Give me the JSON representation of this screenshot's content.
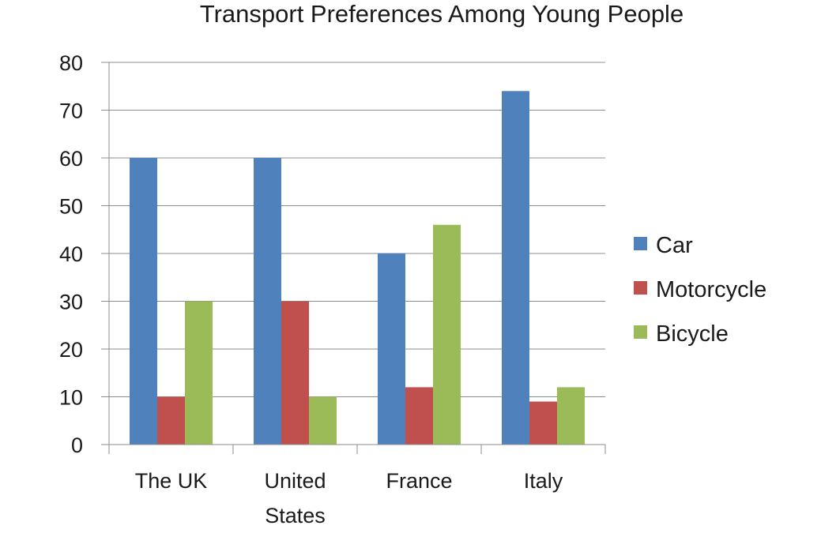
{
  "chart_data": {
    "type": "bar",
    "title": "Transport Preferences Among Young People",
    "categories": [
      "The UK",
      "United States",
      "France",
      "Italy"
    ],
    "category_lines": [
      [
        "The UK"
      ],
      [
        "United",
        "States"
      ],
      [
        "France"
      ],
      [
        "Italy"
      ]
    ],
    "series": [
      {
        "name": "Car",
        "color": "#4f81bd",
        "values": [
          60,
          60,
          40,
          74
        ]
      },
      {
        "name": "Motorcycle",
        "color": "#c0504d",
        "values": [
          10,
          30,
          12,
          9
        ]
      },
      {
        "name": "Bicycle",
        "color": "#9bbb59",
        "values": [
          30,
          10,
          46,
          12
        ]
      }
    ],
    "ylim": [
      0,
      80
    ],
    "yticks": [
      0,
      10,
      20,
      30,
      40,
      50,
      60,
      70,
      80
    ],
    "xlabel": "",
    "ylabel": "",
    "grid": true,
    "legend_position": "right"
  }
}
